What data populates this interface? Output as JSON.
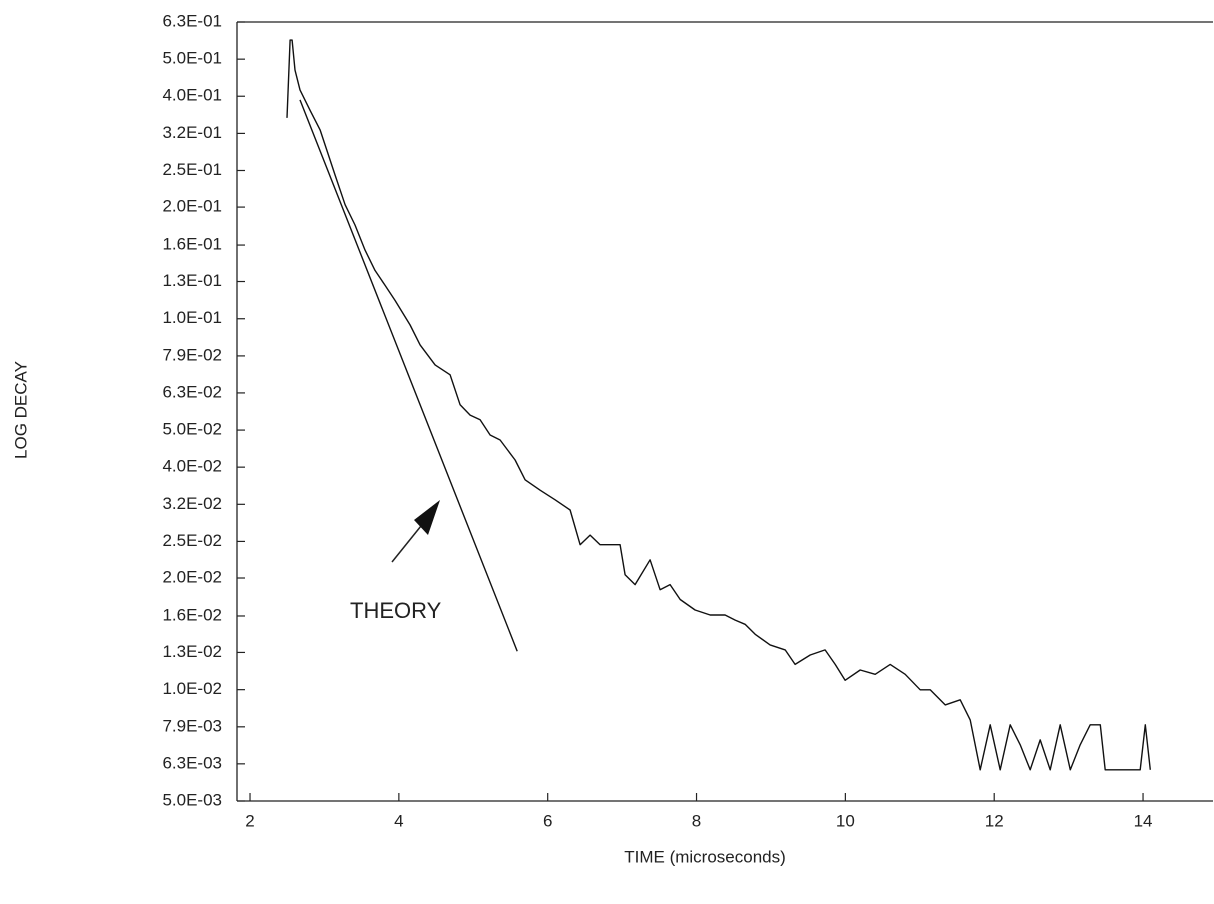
{
  "chart_data": {
    "type": "line",
    "x_label": "TIME (microseconds)",
    "y_label": "LOG DECAY",
    "log_y": true,
    "xlim": [
      1.825,
      14.94
    ],
    "xticks": [
      2,
      4,
      6,
      8,
      10,
      12,
      14
    ],
    "ylim": [
      0.00501,
      0.631
    ],
    "yticks": [
      {
        "value": 0.631,
        "label": "6.3E-01"
      },
      {
        "value": 0.501,
        "label": "5.0E-01"
      },
      {
        "value": 0.398,
        "label": "4.0E-01"
      },
      {
        "value": 0.316,
        "label": "3.2E-01"
      },
      {
        "value": 0.251,
        "label": "2.5E-01"
      },
      {
        "value": 0.2,
        "label": "2.0E-01"
      },
      {
        "value": 0.158,
        "label": "1.6E-01"
      },
      {
        "value": 0.126,
        "label": "1.3E-01"
      },
      {
        "value": 0.1,
        "label": "1.0E-01"
      },
      {
        "value": 0.0794,
        "label": "7.9E-02"
      },
      {
        "value": 0.0631,
        "label": "6.3E-02"
      },
      {
        "value": 0.0501,
        "label": "5.0E-02"
      },
      {
        "value": 0.0398,
        "label": "4.0E-02"
      },
      {
        "value": 0.0316,
        "label": "3.2E-02"
      },
      {
        "value": 0.0251,
        "label": "2.5E-02"
      },
      {
        "value": 0.02,
        "label": "2.0E-02"
      },
      {
        "value": 0.0158,
        "label": "1.6E-02"
      },
      {
        "value": 0.0126,
        "label": "1.3E-02"
      },
      {
        "value": 0.01,
        "label": "1.0E-02"
      },
      {
        "value": 0.00794,
        "label": "7.9E-03"
      },
      {
        "value": 0.00631,
        "label": "6.3E-03"
      },
      {
        "value": 0.00501,
        "label": "5.0E-03"
      }
    ],
    "series": [
      {
        "color": "#111111",
        "x": [
          2.497,
          2.538,
          2.565,
          2.605,
          2.672,
          2.806,
          2.941,
          3.143,
          3.277,
          3.411,
          3.546,
          3.68,
          3.815,
          3.949,
          4.151,
          4.285,
          4.487,
          4.688,
          4.823,
          4.957,
          5.091,
          5.226,
          5.36,
          5.562,
          5.696,
          5.898,
          6.099,
          6.301,
          6.435,
          6.57,
          6.704,
          6.973,
          7.04,
          7.175,
          7.376,
          7.511,
          7.645,
          7.78,
          7.981,
          8.183,
          8.384,
          8.519,
          8.653,
          8.788,
          8.989,
          9.191,
          9.325,
          9.527,
          9.728,
          9.863,
          9.997,
          10.199,
          10.401,
          10.602,
          10.804,
          11.005,
          11.14,
          11.341,
          11.543,
          11.677,
          11.812,
          11.946,
          12.081,
          12.215,
          12.349,
          12.484,
          12.618,
          12.753,
          12.887,
          13.022,
          13.156,
          13.29,
          13.425,
          13.492,
          13.962,
          14.03,
          14.097
        ],
        "values": [
          0.348,
          0.564,
          0.564,
          0.468,
          0.414,
          0.365,
          0.323,
          0.244,
          0.203,
          0.179,
          0.153,
          0.135,
          0.123,
          0.112,
          0.0962,
          0.085,
          0.0751,
          0.0706,
          0.0586,
          0.055,
          0.0534,
          0.0486,
          0.0471,
          0.0416,
          0.0368,
          0.0345,
          0.0325,
          0.0305,
          0.0246,
          0.0261,
          0.0246,
          0.0246,
          0.0204,
          0.0192,
          0.0224,
          0.0186,
          0.0192,
          0.0175,
          0.0164,
          0.0159,
          0.0159,
          0.0154,
          0.015,
          0.0141,
          0.0132,
          0.0128,
          0.0117,
          0.0124,
          0.0128,
          0.0117,
          0.0106,
          0.0113,
          0.011,
          0.0117,
          0.011,
          0.00999,
          0.00999,
          0.0091,
          0.00939,
          0.00829,
          0.00608,
          0.00804,
          0.00608,
          0.00804,
          0.0071,
          0.00608,
          0.00732,
          0.00608,
          0.00804,
          0.00608,
          0.0071,
          0.00804,
          0.00804,
          0.00608,
          0.00608,
          0.00804,
          0.00608
        ]
      },
      {
        "name": "THEORY",
        "color": "#111111",
        "x": [
          2.672,
          5.59
        ],
        "values": [
          0.389,
          0.0127
        ]
      }
    ]
  }
}
